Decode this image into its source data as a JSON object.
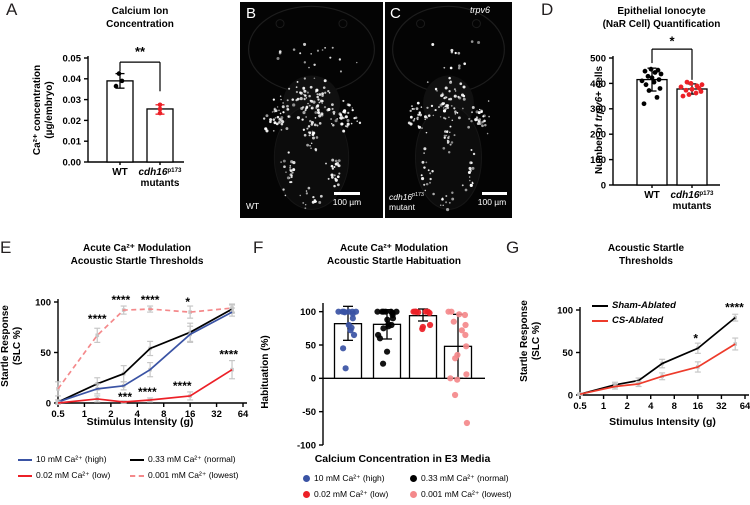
{
  "panels": {
    "A": {
      "letter": "A",
      "title": "Calcium Ion\nConcentration",
      "ylabel": "Ca²⁺ concentration\n(µg/embryo)"
    },
    "B": {
      "letter": "B",
      "sample": "WT",
      "scalebar": "100 µm"
    },
    "C": {
      "letter": "C",
      "gene": "*trpv6*",
      "sample": "*cdh16*^p173^\nmutant",
      "scalebar": "100 µm"
    },
    "D": {
      "letter": "D",
      "title": "Epithelial Ionocyte\n(NaR Cell) Quantification",
      "ylabel": "Number of *trpv6*+ cells"
    },
    "E": {
      "letter": "E",
      "title": "Acute Ca²⁺ Modulation\nAcoustic Startle Thresholds",
      "ylabel": "Startle Response\n(SLC %)",
      "xlabel": "Stimulus Intensity (g)",
      "legend": [
        {
          "label": "10 mM Ca²⁺ (high)",
          "color": "#3A53A4",
          "dash": false
        },
        {
          "label": "0.33 mM Ca²⁺ (normal)",
          "color": "#000000",
          "dash": false
        },
        {
          "label": "0.02 mM Ca²⁺ (low)",
          "color": "#EC2027",
          "dash": false
        },
        {
          "label": "0.001 mM Ca²⁺ (lowest)",
          "color": "#F4898B",
          "dash": true
        }
      ]
    },
    "F": {
      "letter": "F",
      "title": "Acute Ca²⁺ Modulation\nAcoustic Startle Habituation",
      "ylabel": "Habituation (%)",
      "xlabel": "Calcium Concentration in E3 Media",
      "legend": [
        {
          "label": "10 mM Ca²⁺ (high)",
          "color": "#3A53A4"
        },
        {
          "label": "0.33 mM Ca²⁺ (normal)",
          "color": "#000000"
        },
        {
          "label": "0.02 mM Ca²⁺ (low)",
          "color": "#EC2027"
        },
        {
          "label": "0.001 mM Ca²⁺ (lowest)",
          "color": "#F4898B"
        }
      ]
    },
    "G": {
      "letter": "G",
      "title": "Acoustic Startle\nThresholds",
      "ylabel": "Startle Response\n(SLC %)",
      "xlabel": "Stimulus Intensity (g)",
      "legend": [
        {
          "label": "Sham-Ablated",
          "color": "#000000"
        },
        {
          "label": "CS-Ablated",
          "color": "#ED3B2B"
        }
      ]
    }
  },
  "chart_data": [
    {
      "panel": "A",
      "type": "bar",
      "title": "Calcium Ion Concentration",
      "ylabel": "Ca²⁺ concentration (µg/embryo)",
      "ylim": [
        0,
        0.05
      ],
      "yticks": [
        0,
        0.01,
        0.02,
        0.03,
        0.04,
        0.05
      ],
      "categories": [
        "WT",
        "*cdh16*^p173^\nmutants"
      ],
      "values": [
        0.039,
        0.0255
      ],
      "errors": [
        [
          0.0355,
          0.0425
        ],
        [
          0.023,
          0.0275
        ]
      ],
      "points": [
        [
          0.0365,
          0.039,
          0.0425
        ],
        [
          0.0235,
          0.0255,
          0.0275
        ]
      ],
      "point_colors": [
        "#000000",
        "#EC2027"
      ],
      "significance": {
        "label": "**",
        "y": 0.048,
        "drops": [
          0.0435,
          0.034
        ],
        "text_y": 0.053
      }
    },
    {
      "panel": "D",
      "type": "bar",
      "title": "Epithelial Ionocyte (NaR Cell) Quantification",
      "ylabel": "Number of trpv6+ cells",
      "ylim": [
        0,
        500
      ],
      "yticks": [
        0,
        100,
        200,
        300,
        400,
        500
      ],
      "categories": [
        "WT",
        "*cdh16*^p173^\nmutants"
      ],
      "values": [
        415,
        378
      ],
      "errors": [
        [
          370,
          460
        ],
        [
          358,
          398
        ]
      ],
      "points": [
        [
          320,
          345,
          372,
          380,
          395,
          405,
          410,
          415,
          422,
          428,
          437,
          443,
          448,
          452,
          456
        ],
        [
          350,
          356,
          362,
          368,
          373,
          377,
          381,
          386,
          390,
          395,
          400,
          405
        ]
      ],
      "point_colors": [
        "#000000",
        "#EC2027"
      ],
      "significance": {
        "label": "*",
        "y": 535,
        "drops": [
          480,
          414
        ],
        "text_y": 565
      }
    },
    {
      "panel": "E",
      "type": "line",
      "title": "Acute Ca²⁺ Modulation Acoustic Startle Thresholds",
      "xlabel": "Stimulus Intensity (g)",
      "ylabel": "Startle Response (SLC %)",
      "xscale": "log2",
      "xticks": [
        0.5,
        1,
        2,
        4,
        8,
        16,
        32,
        64
      ],
      "x": [
        0.5,
        1.4,
        2.8,
        5.6,
        16,
        48
      ],
      "ylim": [
        0,
        100
      ],
      "yticks": [
        0,
        50,
        100
      ],
      "draw_order": [
        3,
        1,
        0,
        2
      ],
      "series": [
        {
          "name": "10 mM Ca²⁺ (high)",
          "color": "#3A53A4",
          "dash": false,
          "values": [
            1,
            14,
            17,
            33,
            68,
            90
          ],
          "err": [
            2,
            5,
            4,
            7,
            8,
            4
          ]
        },
        {
          "name": "0.33 mM Ca²⁺ (normal)",
          "color": "#000000",
          "dash": false,
          "values": [
            1,
            19,
            29,
            54,
            70,
            93
          ],
          "err": [
            2,
            6,
            8,
            7,
            9,
            4
          ]
        },
        {
          "name": "0.02 mM Ca²⁺ (low)",
          "color": "#EC2027",
          "dash": false,
          "values": [
            0,
            4,
            1,
            3,
            7,
            33
          ],
          "err": [
            1,
            3,
            1,
            2,
            4,
            9
          ]
        },
        {
          "name": "0.001 mM Ca²⁺ (lowest)",
          "color": "#F4898B",
          "dash": true,
          "values": [
            14,
            67,
            92,
            93,
            90,
            94
          ],
          "err": [
            7,
            7,
            4,
            3,
            6,
            4
          ]
        }
      ],
      "annotations": [
        {
          "x": 1.4,
          "y": 79,
          "text": "****"
        },
        {
          "x": 2.6,
          "y": 98,
          "text": "****"
        },
        {
          "x": 5.6,
          "y": 98,
          "text": "****"
        },
        {
          "x": 15,
          "y": 96,
          "text": "*"
        },
        {
          "x": 2.9,
          "y": 2,
          "text": "***"
        },
        {
          "x": 5.2,
          "y": 7,
          "text": "****"
        },
        {
          "x": 13,
          "y": 13,
          "text": "****"
        },
        {
          "x": 44,
          "y": 44,
          "text": "****"
        }
      ]
    },
    {
      "panel": "F",
      "type": "scatter-bar",
      "title": "Acute Ca²⁺ Modulation Acoustic Startle Habituation",
      "xlabel": "Calcium Concentration in E3 Media",
      "ylabel": "Habituation (%)",
      "ylim": [
        -100,
        110
      ],
      "yticks": [
        -100,
        -50,
        0,
        50,
        100
      ],
      "groups": [
        {
          "name": "10 mM Ca²⁺ (high)",
          "color": "#3A53A4",
          "bar": 82,
          "err": [
            57,
            108
          ],
          "points": [
            100,
            100,
            100,
            100,
            100,
            100,
            99,
            97,
            90,
            80,
            76,
            72,
            65,
            45,
            15
          ]
        },
        {
          "name": "0.33 mM Ca²⁺ (normal)",
          "color": "#000000",
          "bar": 81,
          "err": [
            59,
            103
          ],
          "points": [
            100,
            100,
            100,
            100,
            100,
            100,
            98,
            95,
            90,
            88,
            81,
            80,
            78,
            75,
            65,
            60,
            40,
            22
          ]
        },
        {
          "name": "0.02 mM Ca²⁺ (low)",
          "color": "#EC2027",
          "bar": 94,
          "err": [
            86,
            104
          ],
          "points": [
            100,
            100,
            100,
            100,
            100,
            100,
            99,
            98,
            80,
            77,
            74
          ]
        },
        {
          "name": "0.001 mM Ca²⁺ (lowest)",
          "color": "#F4898B",
          "bar": 48,
          "err": [
            0,
            96
          ],
          "points": [
            100,
            100,
            96,
            95,
            85,
            80,
            72,
            65,
            48,
            35,
            30,
            6,
            0,
            -2,
            -25,
            -67
          ]
        }
      ]
    },
    {
      "panel": "G",
      "type": "line",
      "title": "Acoustic Startle Thresholds",
      "xlabel": "Stimulus Intensity (g)",
      "ylabel": "Startle Response (SLC %)",
      "xscale": "log2",
      "xticks": [
        0.5,
        1,
        2,
        4,
        8,
        16,
        32,
        64
      ],
      "x": [
        0.5,
        1.4,
        2.8,
        5.6,
        16,
        48
      ],
      "ylim": [
        0,
        100
      ],
      "yticks": [
        0,
        50,
        100
      ],
      "draw_order": [
        0,
        1
      ],
      "series": [
        {
          "name": "Sham-Ablated",
          "color": "#000000",
          "dash": false,
          "values": [
            1,
            12,
            17,
            37,
            55,
            91
          ],
          "err": [
            1,
            3,
            3,
            5,
            6,
            4
          ]
        },
        {
          "name": "CS-Ablated",
          "color": "#ED3B2B",
          "dash": false,
          "values": [
            1,
            10,
            13,
            22,
            33,
            60
          ],
          "err": [
            1,
            3,
            3,
            4,
            6,
            7
          ]
        }
      ],
      "annotations": [
        {
          "x": 15,
          "y": 62,
          "text": "*"
        },
        {
          "x": 47,
          "y": 98,
          "text": "****"
        }
      ]
    }
  ]
}
